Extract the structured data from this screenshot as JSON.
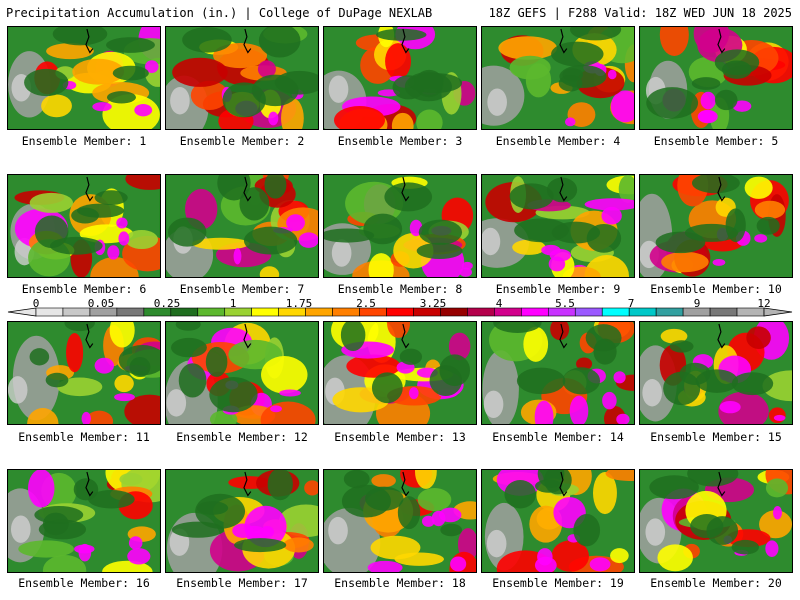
{
  "header": {
    "left": "Precipitation Accumulation (in.) | College of DuPage NEXLAB",
    "right": "18Z GEFS | F288 Valid: 18Z WED JUN 18 2025"
  },
  "colorbar": {
    "tick_labels": [
      "0",
      "0.05",
      "0.25",
      "1",
      "1.75",
      "2.5",
      "3.25",
      "4",
      "5.5",
      "7",
      "9",
      "12"
    ],
    "colors": [
      "#e6e6e6",
      "#c8c8c8",
      "#a0a0a0",
      "#787878",
      "#2e8b2e",
      "#1f6e1f",
      "#5cb82e",
      "#9ad232",
      "#ffff00",
      "#ffd700",
      "#ffa500",
      "#ff7f00",
      "#ff4500",
      "#ff0000",
      "#c80000",
      "#960000",
      "#b4004b",
      "#d2008c",
      "#ff00ff",
      "#c832ff",
      "#9b59ff",
      "#00ffff",
      "#00c8c8",
      "#32a0a0",
      "#a0a0a0",
      "#787878",
      "#b4b4b4"
    ]
  },
  "panels": [
    {
      "label": "Ensemble Member: 1"
    },
    {
      "label": "Ensemble Member: 2"
    },
    {
      "label": "Ensemble Member: 3"
    },
    {
      "label": "Ensemble Member: 4"
    },
    {
      "label": "Ensemble Member: 5"
    },
    {
      "label": "Ensemble Member: 6"
    },
    {
      "label": "Ensemble Member: 7"
    },
    {
      "label": "Ensemble Member: 8"
    },
    {
      "label": "Ensemble Member: 9"
    },
    {
      "label": "Ensemble Member: 10"
    },
    {
      "label": "Ensemble Member: 11"
    },
    {
      "label": "Ensemble Member: 12"
    },
    {
      "label": "Ensemble Member: 13"
    },
    {
      "label": "Ensemble Member: 14"
    },
    {
      "label": "Ensemble Member: 15"
    },
    {
      "label": "Ensemble Member: 16"
    },
    {
      "label": "Ensemble Member: 17"
    },
    {
      "label": "Ensemble Member: 18"
    },
    {
      "label": "Ensemble Member: 19"
    },
    {
      "label": "Ensemble Member: 20"
    }
  ]
}
